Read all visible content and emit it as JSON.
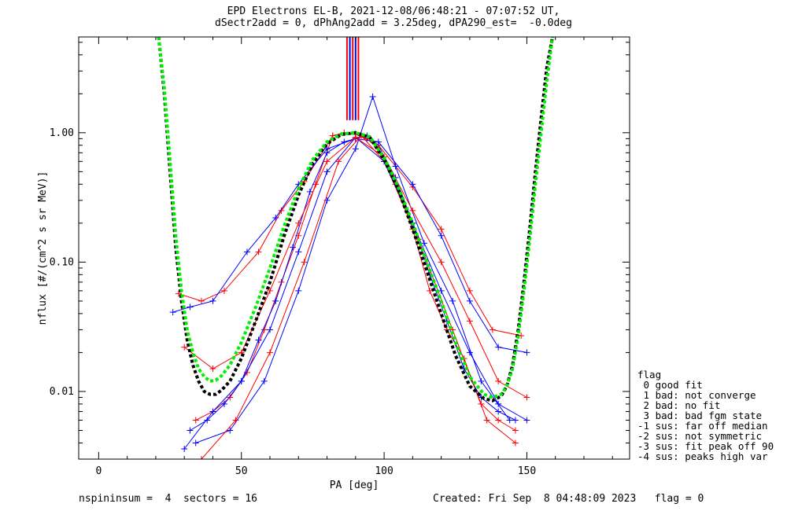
{
  "title_line1": "EPD Electrons EL-B, 2021-12-08/06:48:21 - 07:07:52 UT,",
  "title_line2": "dSectr2add = 0, dPhAng2add = 3.25deg, dPA290_est=  -0.0deg",
  "footer_left": "nspininsum =  4  sectors = 16",
  "footer_right": "Created: Fri Sep  8 04:48:09 2023   flag = 0",
  "legend": {
    "title": "flag",
    "items": [
      " 0 good fit",
      " 1 bad: not converge",
      " 2 bad: no fit",
      " 3 bad: bad fgm state",
      "-1 sus: far off median",
      "-2 sus: not symmetric",
      "-3 sus: fit peak off 90",
      "-4 sus: peaks high var"
    ]
  },
  "colors": {
    "red": "#ff0000",
    "blue": "#0000ff",
    "fit_black": "#000000",
    "fit_green": "#00ee00"
  },
  "chart_data": {
    "type": "line",
    "title": "EPD Electrons EL-B, 2021-12-08/06:48:21 - 07:07:52 UT,",
    "subtitle": "dSectr2add = 0, dPhAng2add = 3.25deg, dPA290_est=  -0.0deg",
    "xlabel": "PA [deg]",
    "ylabel": "nflux [#/(cm^2 s sr MeV)]",
    "xlim": [
      -7,
      186
    ],
    "ylim": [
      0.003,
      5.5
    ],
    "yscale": "log",
    "xticks": [
      0,
      50,
      100,
      150
    ],
    "yticks": [
      0.01,
      0.1,
      1.0
    ],
    "ytick_labels": [
      "0.01",
      "0.10",
      "1.00"
    ],
    "legend_position": "right-bottom",
    "grid": false,
    "vertical_marker_pa": [
      87,
      88,
      89,
      90,
      91
    ],
    "series": [
      {
        "color": "#ff0000",
        "marker": "+",
        "x": [
          34,
          40,
          46,
          52,
          58,
          64,
          70,
          76,
          82,
          86,
          90,
          94,
          98,
          104,
          110,
          116,
          122,
          128,
          134,
          140,
          146
        ],
        "y": [
          0.006,
          0.007,
          0.009,
          0.014,
          0.03,
          0.07,
          0.16,
          0.4,
          0.95,
          1.0,
          0.97,
          0.9,
          0.75,
          0.4,
          0.18,
          0.06,
          0.03,
          0.018,
          0.008,
          0.006,
          0.005
        ]
      },
      {
        "color": "#0000ff",
        "marker": "+",
        "x": [
          32,
          38,
          44,
          50,
          56,
          62,
          68,
          74,
          80,
          86,
          90,
          94,
          98,
          104,
          110,
          116,
          122,
          128,
          134,
          140,
          146
        ],
        "y": [
          0.005,
          0.006,
          0.008,
          0.012,
          0.025,
          0.05,
          0.13,
          0.35,
          0.7,
          0.85,
          0.9,
          0.95,
          0.8,
          0.45,
          0.2,
          0.08,
          0.035,
          0.015,
          0.009,
          0.007,
          0.006
        ]
      },
      {
        "color": "#ff0000",
        "marker": "+",
        "x": [
          28,
          36,
          44,
          56,
          64,
          72,
          82,
          90,
          98,
          110,
          120,
          130,
          138,
          148
        ],
        "y": [
          0.057,
          0.05,
          0.06,
          0.12,
          0.25,
          0.42,
          0.95,
          0.98,
          0.8,
          0.38,
          0.18,
          0.06,
          0.03,
          0.027
        ]
      },
      {
        "color": "#0000ff",
        "marker": "+",
        "x": [
          26,
          32,
          40,
          52,
          62,
          70,
          80,
          90,
          98,
          110,
          120,
          130,
          140,
          150
        ],
        "y": [
          0.041,
          0.045,
          0.05,
          0.12,
          0.22,
          0.4,
          0.75,
          0.9,
          0.85,
          0.4,
          0.16,
          0.05,
          0.022,
          0.02
        ]
      },
      {
        "color": "#0000ff",
        "marker": "+",
        "x": [
          34,
          46,
          58,
          70,
          80,
          90,
          96,
          104,
          114,
          124,
          134,
          144
        ],
        "y": [
          0.004,
          0.005,
          0.012,
          0.06,
          0.3,
          0.75,
          1.9,
          0.55,
          0.14,
          0.05,
          0.012,
          0.006
        ]
      },
      {
        "color": "#ff0000",
        "marker": "+",
        "x": [
          36,
          48,
          60,
          72,
          84,
          92,
          100,
          112,
          124,
          136,
          146
        ],
        "y": [
          0.003,
          0.006,
          0.02,
          0.1,
          0.6,
          0.95,
          0.6,
          0.15,
          0.03,
          0.006,
          0.004
        ]
      },
      {
        "color": "#0000ff",
        "marker": "+",
        "x": [
          30,
          40,
          50,
          60,
          70,
          80,
          90,
          100,
          110,
          120,
          130,
          140,
          150
        ],
        "y": [
          0.0036,
          0.007,
          0.012,
          0.03,
          0.12,
          0.5,
          0.92,
          0.6,
          0.2,
          0.06,
          0.02,
          0.008,
          0.006
        ]
      },
      {
        "color": "#ff0000",
        "marker": "+",
        "x": [
          30,
          40,
          50,
          60,
          70,
          80,
          90,
          100,
          110,
          120,
          130,
          140,
          150
        ],
        "y": [
          0.022,
          0.015,
          0.02,
          0.06,
          0.2,
          0.6,
          0.92,
          0.65,
          0.25,
          0.1,
          0.035,
          0.012,
          0.009
        ]
      }
    ],
    "fit_curves": [
      {
        "name": "",
        "color": "#000000",
        "style": "dashed",
        "x": [
          21,
          23,
          25,
          27,
          29,
          31,
          33,
          35,
          37,
          39,
          41,
          43,
          46,
          50,
          55,
          60,
          65,
          70,
          75,
          80,
          85,
          90,
          95,
          100,
          105,
          110,
          115,
          120,
          125,
          130,
          135,
          138,
          141,
          143,
          145,
          147,
          149,
          151,
          153,
          155,
          157,
          159
        ],
        "y": [
          5.5,
          2.0,
          0.5,
          0.13,
          0.05,
          0.025,
          0.016,
          0.012,
          0.01,
          0.0095,
          0.0095,
          0.0102,
          0.012,
          0.018,
          0.035,
          0.07,
          0.16,
          0.33,
          0.58,
          0.82,
          0.97,
          1.0,
          0.92,
          0.62,
          0.36,
          0.18,
          0.085,
          0.04,
          0.019,
          0.011,
          0.0088,
          0.0085,
          0.0092,
          0.011,
          0.016,
          0.03,
          0.07,
          0.18,
          0.5,
          1.3,
          3.2,
          5.5
        ]
      },
      {
        "name": "",
        "color": "#00ee00",
        "style": "dashed",
        "x": [
          21,
          23,
          25,
          27,
          29,
          31,
          33,
          35,
          37,
          39,
          41,
          43,
          46,
          50,
          55,
          60,
          65,
          70,
          75,
          80,
          85,
          90,
          95,
          100,
          105,
          110,
          115,
          120,
          125,
          130,
          135,
          138,
          141,
          143,
          145,
          147,
          149,
          151,
          153,
          155,
          157,
          159
        ],
        "y": [
          5.5,
          2.2,
          0.6,
          0.16,
          0.06,
          0.03,
          0.02,
          0.015,
          0.013,
          0.012,
          0.0122,
          0.0132,
          0.016,
          0.024,
          0.045,
          0.09,
          0.19,
          0.37,
          0.62,
          0.85,
          0.98,
          1.0,
          0.93,
          0.64,
          0.38,
          0.2,
          0.1,
          0.05,
          0.024,
          0.013,
          0.0095,
          0.009,
          0.0095,
          0.011,
          0.015,
          0.027,
          0.06,
          0.15,
          0.4,
          1.0,
          2.5,
          5.5
        ]
      }
    ]
  }
}
